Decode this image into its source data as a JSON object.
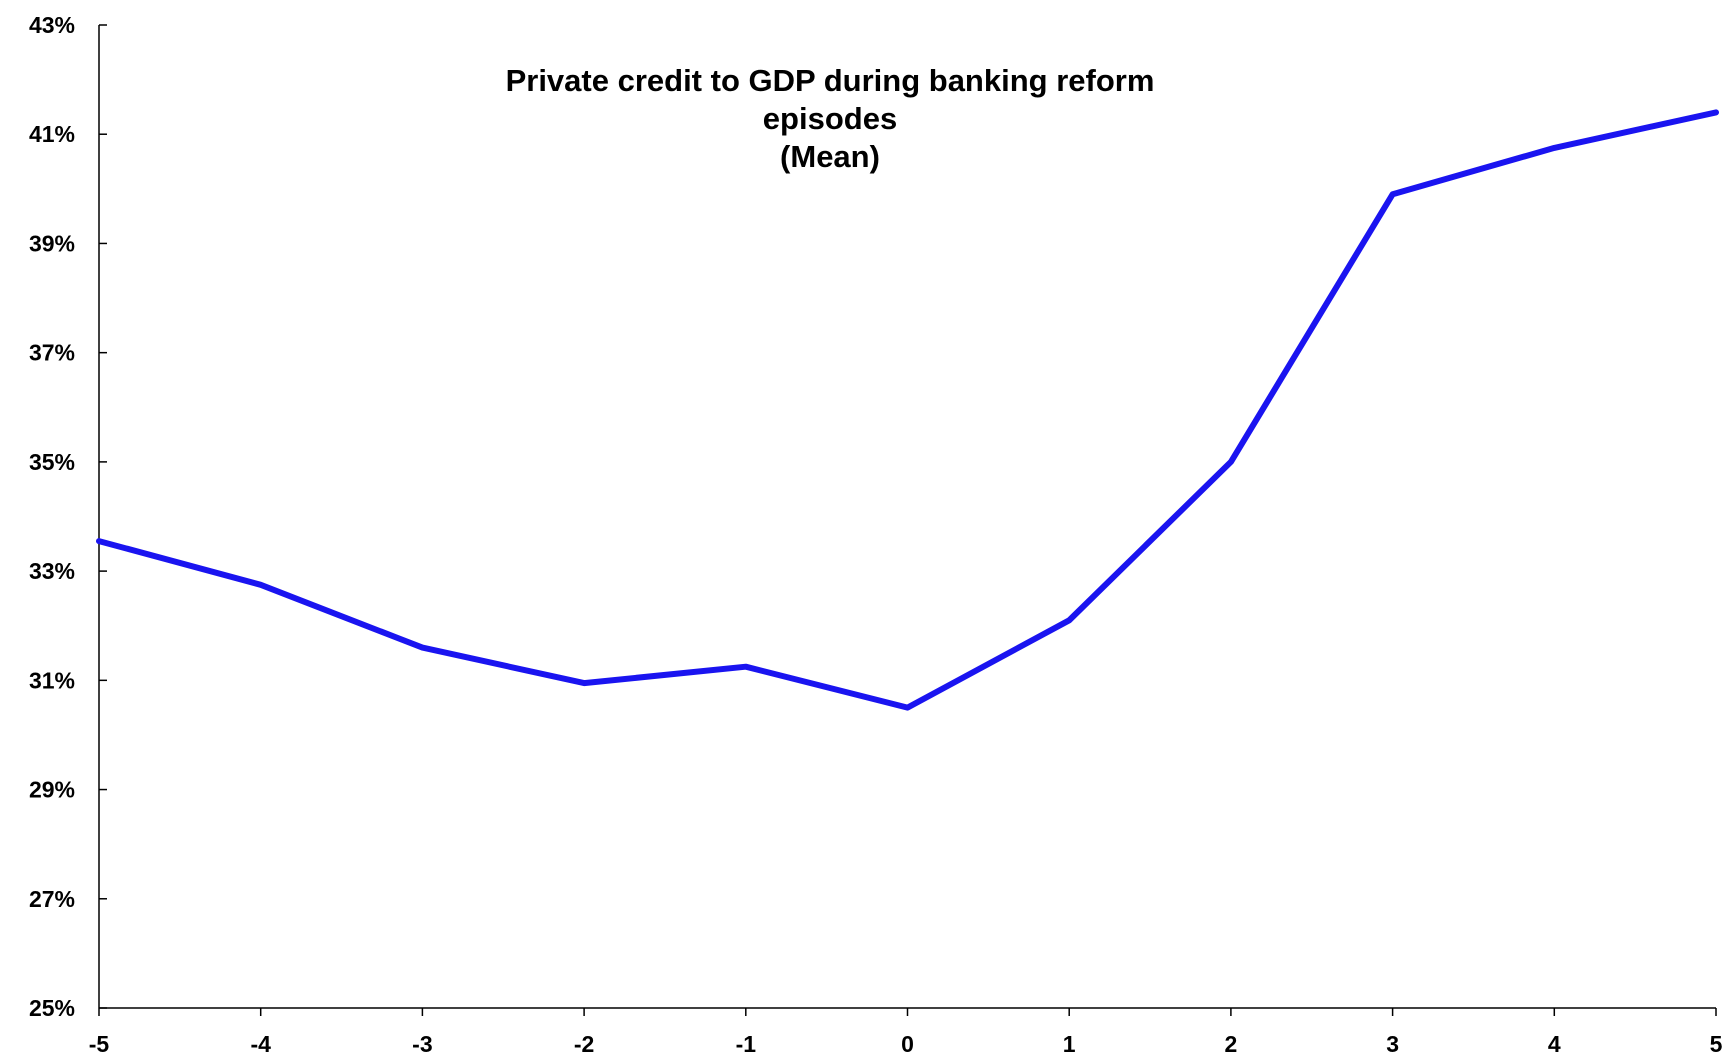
{
  "chart_data": {
    "type": "line",
    "title": "Private credit to GDP during banking reform episodes",
    "subtitle": "(Mean)",
    "xlabel": "",
    "ylabel": "",
    "x": [
      -5,
      -4,
      -3,
      -2,
      -1,
      0,
      1,
      2,
      3,
      4,
      5
    ],
    "x_tick_labels": [
      "-5",
      "-4",
      "-3",
      "-2",
      "-1",
      "0",
      "1",
      "2",
      "3",
      "4",
      "5"
    ],
    "y_tick_values": [
      25,
      27,
      29,
      31,
      33,
      35,
      37,
      39,
      41,
      43
    ],
    "y_tick_labels": [
      "25%",
      "27%",
      "29%",
      "31%",
      "33%",
      "35%",
      "37%",
      "39%",
      "41%",
      "43%"
    ],
    "ylim": [
      25,
      43
    ],
    "xlim": [
      -5,
      5
    ],
    "grid": false,
    "legend": "none",
    "series": [
      {
        "color": "#1a14f0",
        "values": [
          33.55,
          32.75,
          31.6,
          30.95,
          31.25,
          30.5,
          32.1,
          35.0,
          39.9,
          40.75,
          41.4
        ]
      }
    ]
  }
}
